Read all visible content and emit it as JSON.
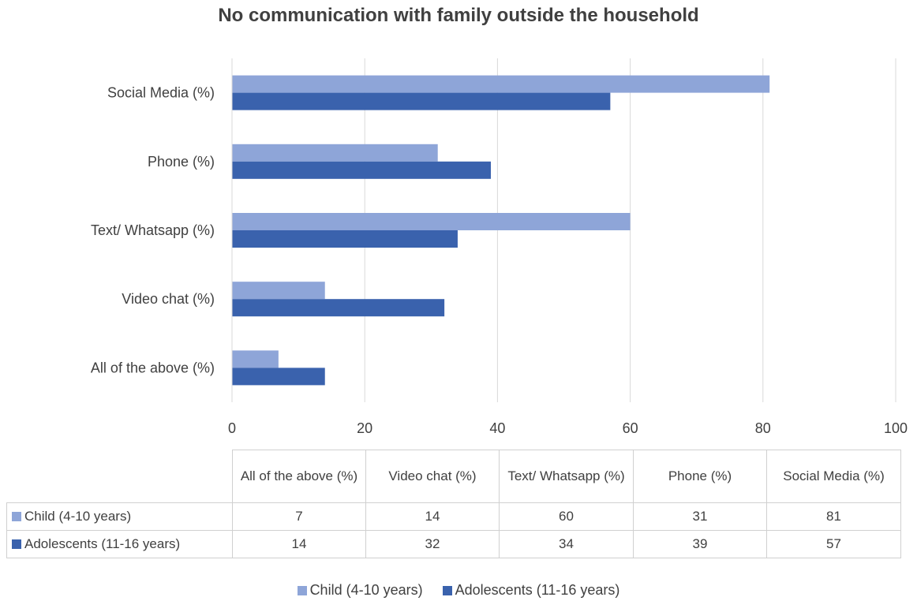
{
  "chart_data": {
    "type": "bar",
    "orientation": "horizontal",
    "title": "No communication with family outside the household",
    "categories": [
      "All of the above (%)",
      "Video chat (%)",
      "Text/ Whatsapp (%)",
      "Phone (%)",
      "Social Media (%)"
    ],
    "series": [
      {
        "name": "Child (4-10 years)",
        "color": "#8EA5D8",
        "values": [
          7,
          14,
          60,
          31,
          81
        ]
      },
      {
        "name": "Adolescents (11-16 years)",
        "color": "#3A62AD",
        "values": [
          14,
          32,
          34,
          39,
          57
        ]
      }
    ],
    "xlim": [
      0,
      100
    ],
    "xticks": [
      0,
      20,
      40,
      60,
      80,
      100
    ],
    "grid": true,
    "data_table": true,
    "legend_position": "bottom"
  },
  "table_headers": [
    "All of the above (%)",
    "Video chat (%)",
    "Text/ Whatsapp (%)",
    "Phone (%)",
    "Social Media (%)"
  ]
}
